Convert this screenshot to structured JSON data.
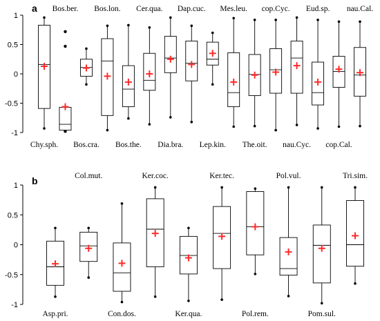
{
  "chart_data": [
    {
      "type": "box",
      "panel_label": "a",
      "ylim": [
        -1,
        1
      ],
      "yticks": [
        "1",
        "0.5",
        "0",
        "-0.5",
        "-1"
      ],
      "legend": "none",
      "grid": false,
      "marker_color": "#ff2a2a",
      "categories": [
        "Chy.sph.",
        "Bos.ber.",
        "Bos.cra.",
        "Bos.lon.",
        "Bos.the.",
        "Cer.qua.",
        "Dia.bra.",
        "Dap.cuc.",
        "Lep.kin.",
        "Mes.leu.",
        "The.oit.",
        "cop.Cyc.",
        "nau.Cyc.",
        "Eud.sp.",
        "cop.Cal.",
        "nau.Cal."
      ],
      "label_positions": [
        "bottom",
        "top",
        "bottom",
        "top",
        "bottom",
        "top",
        "bottom",
        "top",
        "bottom",
        "top",
        "bottom",
        "top",
        "bottom",
        "top",
        "bottom",
        "top"
      ],
      "boxes": [
        {
          "whisker_low": -0.93,
          "q1": -0.59,
          "median": 0.16,
          "q3": 0.83,
          "whisker_high": 0.96,
          "mean": 0.13,
          "outliers": []
        },
        {
          "whisker_low": -0.96,
          "q1": -0.96,
          "median": -0.86,
          "q3": -0.57,
          "whisker_high": -0.57,
          "mean": -0.56,
          "outliers": [
            0.72,
            0.47,
            -0.98
          ]
        },
        {
          "whisker_low": -0.18,
          "q1": -0.04,
          "median": 0.11,
          "q3": 0.25,
          "whisker_high": 0.43,
          "mean": 0.1,
          "outliers": []
        },
        {
          "whisker_low": -0.96,
          "q1": -0.71,
          "median": 0.22,
          "q3": 0.6,
          "whisker_high": 0.82,
          "mean": -0.04,
          "outliers": []
        },
        {
          "whisker_low": -0.76,
          "q1": -0.56,
          "median": -0.26,
          "q3": 0.14,
          "whisker_high": 0.83,
          "mean": -0.14,
          "outliers": []
        },
        {
          "whisker_low": -0.86,
          "q1": -0.28,
          "median": -0.11,
          "q3": 0.35,
          "whisker_high": 0.79,
          "mean": 0.0,
          "outliers": []
        },
        {
          "whisker_low": -0.74,
          "q1": 0.02,
          "median": 0.27,
          "q3": 0.64,
          "whisker_high": 0.96,
          "mean": 0.25,
          "outliers": []
        },
        {
          "whisker_low": -0.82,
          "q1": -0.12,
          "median": 0.18,
          "q3": 0.56,
          "whisker_high": 0.82,
          "mean": 0.16,
          "outliers": []
        },
        {
          "whisker_low": -0.18,
          "q1": 0.15,
          "median": 0.25,
          "q3": 0.54,
          "whisker_high": 0.7,
          "mean": 0.35,
          "outliers": []
        },
        {
          "whisker_low": -0.9,
          "q1": -0.56,
          "median": -0.32,
          "q3": 0.36,
          "whisker_high": 0.95,
          "mean": -0.14,
          "outliers": []
        },
        {
          "whisker_low": -0.89,
          "q1": -0.37,
          "median": -0.01,
          "q3": 0.33,
          "whisker_high": 0.92,
          "mean": -0.02,
          "outliers": []
        },
        {
          "whisker_low": -0.96,
          "q1": -0.33,
          "median": 0.07,
          "q3": 0.43,
          "whisker_high": 0.92,
          "mean": 0.03,
          "outliers": []
        },
        {
          "whisker_low": -0.87,
          "q1": -0.33,
          "median": 0.27,
          "q3": 0.56,
          "whisker_high": 0.96,
          "mean": 0.14,
          "outliers": []
        },
        {
          "whisker_low": -0.93,
          "q1": -0.53,
          "median": -0.32,
          "q3": 0.2,
          "whisker_high": 0.92,
          "mean": -0.14,
          "outliers": []
        },
        {
          "whisker_low": -0.9,
          "q1": -0.23,
          "median": 0.04,
          "q3": 0.3,
          "whisker_high": 0.89,
          "mean": 0.08,
          "outliers": []
        },
        {
          "whisker_low": -0.89,
          "q1": -0.38,
          "median": -0.02,
          "q3": 0.45,
          "whisker_high": 0.89,
          "mean": 0.02,
          "outliers": []
        }
      ]
    },
    {
      "type": "box",
      "panel_label": "b",
      "ylim": [
        -1,
        1
      ],
      "yticks": [
        "1",
        "0.5",
        "0",
        "-0.5",
        "-1"
      ],
      "legend": "none",
      "grid": false,
      "marker_color": "#ff2a2a",
      "categories": [
        "Asp.pri.",
        "Col.mut.",
        "Con.dos.",
        "Ker.coc.",
        "Ker.qua.",
        "Ker.tec.",
        "Pol.rem.",
        "Pol.vul.",
        "Pom.sul.",
        "Tri.sim."
      ],
      "label_positions": [
        "bottom",
        "top",
        "bottom",
        "top",
        "bottom",
        "top",
        "bottom",
        "top",
        "bottom",
        "top"
      ],
      "boxes": [
        {
          "whisker_low": -0.87,
          "q1": -0.68,
          "median": -0.37,
          "q3": 0.06,
          "whisker_high": 0.28,
          "mean": -0.32,
          "outliers": []
        },
        {
          "whisker_low": -0.55,
          "q1": -0.28,
          "median": -0.02,
          "q3": 0.21,
          "whisker_high": 0.28,
          "mean": -0.06,
          "outliers": []
        },
        {
          "whisker_low": -0.96,
          "q1": -0.78,
          "median": -0.47,
          "q3": 0.03,
          "whisker_high": 0.69,
          "mean": -0.31,
          "outliers": []
        },
        {
          "whisker_low": -0.87,
          "q1": -0.37,
          "median": 0.26,
          "q3": 0.77,
          "whisker_high": 0.96,
          "mean": 0.19,
          "outliers": []
        },
        {
          "whisker_low": -0.94,
          "q1": -0.49,
          "median": -0.18,
          "q3": 0.14,
          "whisker_high": 0.28,
          "mean": -0.22,
          "outliers": []
        },
        {
          "whisker_low": -0.92,
          "q1": -0.4,
          "median": 0.19,
          "q3": 0.64,
          "whisker_high": 0.96,
          "mean": 0.14,
          "outliers": []
        },
        {
          "whisker_low": -0.49,
          "q1": -0.17,
          "median": 0.3,
          "q3": 0.89,
          "whisker_high": 0.94,
          "mean": 0.3,
          "outliers": []
        },
        {
          "whisker_low": -0.86,
          "q1": -0.51,
          "median": -0.4,
          "q3": 0.12,
          "whisker_high": 0.96,
          "mean": -0.12,
          "outliers": []
        },
        {
          "whisker_low": -0.98,
          "q1": -0.64,
          "median": -0.01,
          "q3": 0.33,
          "whisker_high": 0.96,
          "mean": -0.06,
          "outliers": []
        },
        {
          "whisker_low": -0.65,
          "q1": -0.36,
          "median": 0.0,
          "q3": 0.74,
          "whisker_high": 0.96,
          "mean": 0.15,
          "outliers": []
        }
      ]
    }
  ]
}
